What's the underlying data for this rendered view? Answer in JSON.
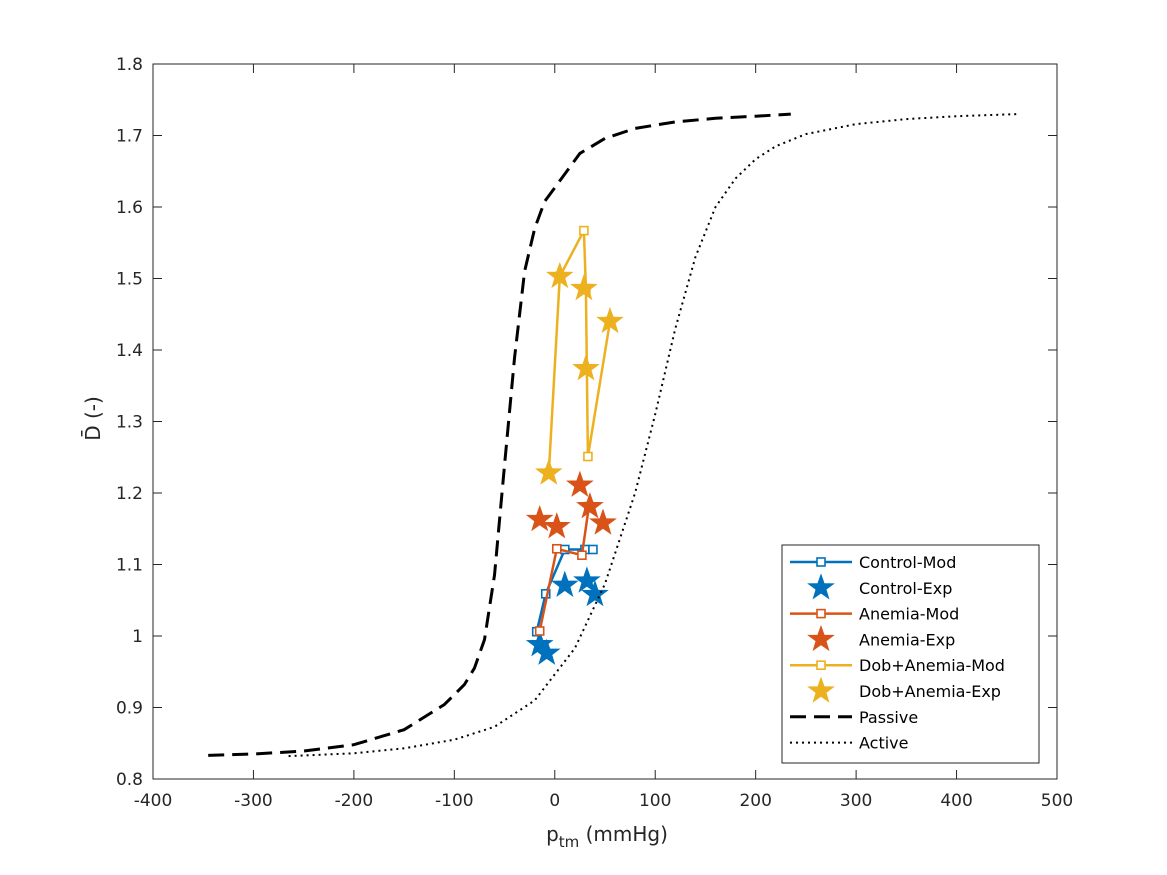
{
  "chart_data": {
    "type": "line",
    "title": "",
    "xlabel_main": "p",
    "xlabel_sub": "tm",
    "xlabel_unit": " (mmHg)",
    "ylabel": "D̄ (-)",
    "xlim": [
      -400,
      500
    ],
    "ylim": [
      0.8,
      1.8
    ],
    "xticks": [
      -400,
      -300,
      -200,
      -100,
      0,
      100,
      200,
      300,
      400,
      500
    ],
    "xtick_labels": [
      "-400",
      "-300",
      "-200",
      "-100",
      "0",
      "100",
      "200",
      "300",
      "400",
      "500"
    ],
    "yticks": [
      0.8,
      0.9,
      1.0,
      1.1,
      1.2,
      1.3,
      1.4,
      1.5,
      1.6,
      1.7,
      1.8
    ],
    "ytick_labels": [
      "0.8",
      "0.9",
      "1",
      "1.1",
      "1.2",
      "1.3",
      "1.4",
      "1.5",
      "1.6",
      "1.7",
      "1.8"
    ],
    "grid": false,
    "legend_position": "bottom-right",
    "series": [
      {
        "name": "Control-Mod",
        "kind": "line-square",
        "color": "#0072BD",
        "x": [
          -18,
          -9,
          10,
          30,
          38
        ],
        "y": [
          1.006,
          1.059,
          1.121,
          1.121,
          1.121
        ]
      },
      {
        "name": "Control-Exp",
        "kind": "star",
        "color": "#0072BD",
        "x": [
          -15,
          -8,
          10,
          32,
          40
        ],
        "y": [
          0.988,
          0.976,
          1.071,
          1.077,
          1.058
        ]
      },
      {
        "name": "Anemia-Mod",
        "kind": "line-square",
        "color": "#D95319",
        "x": [
          -15,
          2,
          27,
          34
        ],
        "y": [
          1.007,
          1.122,
          1.113,
          1.181
        ]
      },
      {
        "name": "Anemia-Exp",
        "kind": "star",
        "color": "#D95319",
        "x": [
          -15,
          2,
          25,
          35,
          48
        ],
        "y": [
          1.163,
          1.153,
          1.211,
          1.181,
          1.158
        ]
      },
      {
        "name": "Dob+Anemia-Mod",
        "kind": "line-square",
        "color": "#EDB120",
        "x": [
          -6,
          5,
          29,
          31,
          33,
          55
        ],
        "y": [
          1.228,
          1.503,
          1.567,
          1.486,
          1.251,
          1.44
        ]
      },
      {
        "name": "Dob+Anemia-Exp",
        "kind": "star",
        "color": "#EDB120",
        "x": [
          -6,
          5,
          29,
          31,
          55
        ],
        "y": [
          1.228,
          1.503,
          1.486,
          1.374,
          1.44
        ]
      },
      {
        "name": "Passive",
        "kind": "dashed",
        "color": "#000000",
        "x": [
          -345,
          -300,
          -250,
          -200,
          -150,
          -110,
          -90,
          -80,
          -70,
          -60,
          -50,
          -40,
          -30,
          -20,
          -10,
          0,
          25,
          50,
          80,
          120,
          160,
          200,
          235
        ],
        "y": [
          0.833,
          0.835,
          0.839,
          0.848,
          0.869,
          0.904,
          0.932,
          0.955,
          0.995,
          1.085,
          1.24,
          1.39,
          1.51,
          1.57,
          1.608,
          1.627,
          1.675,
          1.696,
          1.71,
          1.719,
          1.724,
          1.727,
          1.73
        ]
      },
      {
        "name": "Active",
        "kind": "dotted",
        "color": "#000000",
        "x": [
          -265,
          -200,
          -150,
          -100,
          -60,
          -20,
          20,
          50,
          80,
          100,
          120,
          140,
          160,
          180,
          200,
          220,
          250,
          300,
          350,
          400,
          460
        ],
        "y": [
          0.832,
          0.836,
          0.843,
          0.855,
          0.873,
          0.91,
          0.983,
          1.073,
          1.2,
          1.31,
          1.43,
          1.53,
          1.6,
          1.64,
          1.667,
          1.685,
          1.702,
          1.716,
          1.723,
          1.727,
          1.73
        ]
      }
    ]
  }
}
